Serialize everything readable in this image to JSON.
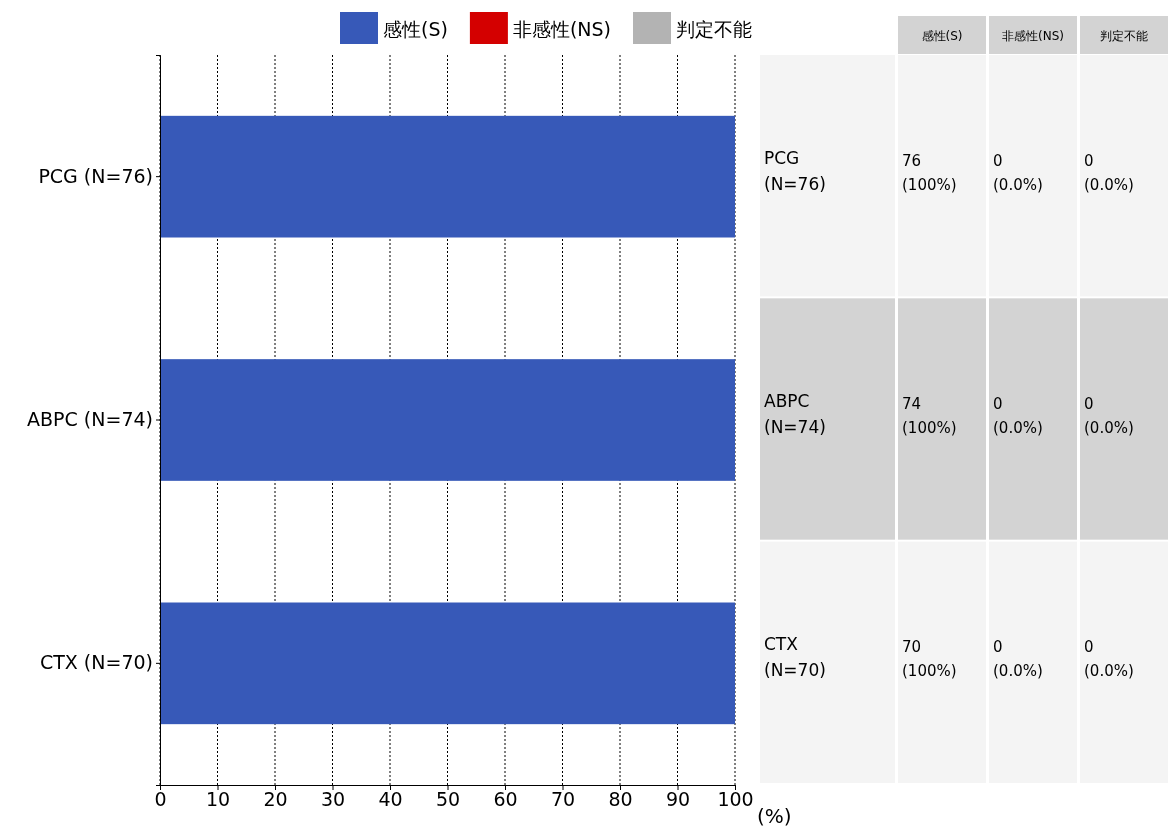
{
  "chart_data": {
    "type": "bar",
    "orientation": "horizontal",
    "categories": [
      "PCG (N=76)",
      "ABPC (N=74)",
      "CTX (N=70)"
    ],
    "series": [
      {
        "name": "感性(S)",
        "color": "#3759b8",
        "values": [
          100,
          100,
          100
        ],
        "value_labels": [
          "76 (100%)",
          "74 (100%)",
          "70 (100%)"
        ]
      },
      {
        "name": "非感性(NS)",
        "color": "#d40000",
        "values": [
          0,
          0,
          0
        ],
        "value_labels": [
          "0 (0.0%)",
          "0 (0.0%)",
          "0 (0.0%)"
        ]
      },
      {
        "name": "判定不能",
        "color": "#b3b3b3",
        "values": [
          0,
          0,
          0
        ],
        "value_labels": [
          "0 (0.0%)",
          "0 (0.0%)",
          "0 (0.0%)"
        ]
      }
    ],
    "xlim": [
      0,
      100
    ],
    "xticks": [
      0,
      10,
      20,
      30,
      40,
      50,
      60,
      70,
      80,
      90,
      100
    ],
    "xlabel": "(%)",
    "grid": "x",
    "legend": "top"
  }
}
